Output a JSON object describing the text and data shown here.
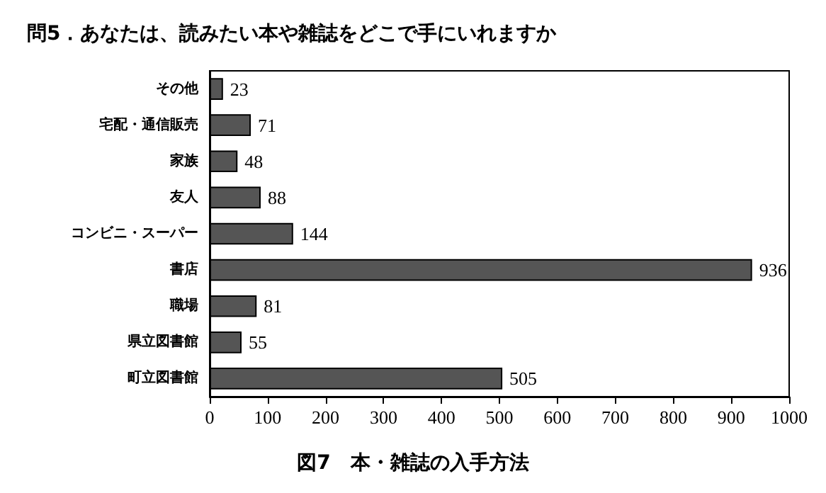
{
  "chart_data": {
    "type": "bar",
    "orientation": "horizontal",
    "title": "問5．あなたは、読みたい本や雑誌をどこで手にいれますか",
    "annotations": [
      "図7　本・雑誌の入手方法"
    ],
    "categories": [
      "その他",
      "宅配・通信販売",
      "家族",
      "友人",
      "コンビニ・スーパー",
      "書店",
      "職場",
      "県立図書館",
      "町立図書館"
    ],
    "values": [
      23,
      71,
      48,
      88,
      144,
      936,
      81,
      55,
      505
    ],
    "color": "#555555",
    "xlim": [
      0,
      1000
    ],
    "xticks": [
      0,
      100,
      200,
      300,
      400,
      500,
      600,
      700,
      800,
      900,
      1000
    ],
    "data_labels": true
  }
}
